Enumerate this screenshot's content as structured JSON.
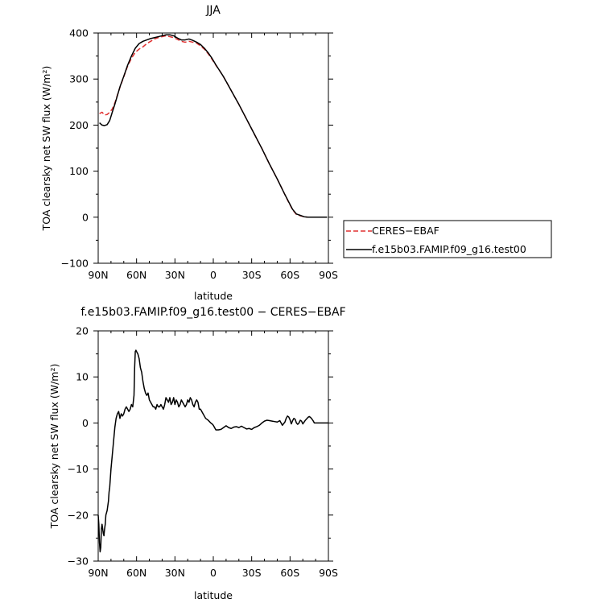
{
  "chart_data": [
    {
      "type": "line",
      "title": "JJA",
      "xlabel": "latitude",
      "ylabel": "TOA clearsky net SW flux (W/m²)",
      "xlim": [
        90,
        -90
      ],
      "ylim": [
        -100,
        400
      ],
      "x_ticks": [
        90,
        60,
        30,
        0,
        -30,
        -60,
        -90
      ],
      "x_tick_labels": [
        "90N",
        "60N",
        "30N",
        "0",
        "30S",
        "60S",
        "90S"
      ],
      "y_ticks": [
        -100,
        0,
        100,
        200,
        300,
        400
      ],
      "y_tick_labels": [
        "−100",
        "0",
        "100",
        "200",
        "300",
        "400"
      ],
      "legend": {
        "placement": "right",
        "entries": [
          {
            "label": "CERES−EBAF",
            "color": "#e03030",
            "dash": "dashed"
          },
          {
            "label": "f.e15b03.FAMIP.f09_g16.test00",
            "color": "#000000",
            "dash": "solid"
          }
        ]
      },
      "series": [
        {
          "name": "CERES−EBAF",
          "color": "#e03030",
          "dash": "dashed",
          "x": [
            89,
            87,
            85,
            83,
            81,
            79,
            77,
            75,
            73,
            70,
            67,
            64,
            61,
            58,
            55,
            52,
            49,
            46,
            43,
            40,
            37,
            34,
            31,
            28,
            25,
            22,
            19,
            16,
            13,
            10,
            7,
            4,
            1,
            -2,
            -5,
            -8,
            -11,
            -14,
            -17,
            -20,
            -23,
            -26,
            -29,
            -32,
            -35,
            -38,
            -41,
            -44,
            -47,
            -50,
            -53,
            -56,
            -59,
            -62,
            -65,
            -68,
            -71,
            -74,
            -77,
            -80,
            -83,
            -86,
            -89
          ],
          "y": [
            225,
            228,
            222,
            223,
            228,
            235,
            248,
            265,
            282,
            305,
            328,
            345,
            358,
            365,
            370,
            377,
            382,
            387,
            390,
            392,
            394,
            392,
            390,
            386,
            382,
            380,
            382,
            380,
            378,
            372,
            365,
            355,
            343,
            330,
            318,
            305,
            290,
            275,
            260,
            245,
            229,
            213,
            197,
            181,
            165,
            149,
            132,
            115,
            99,
            83,
            66,
            49,
            32,
            16,
            6,
            3,
            1,
            0,
            0,
            0,
            0,
            0,
            0
          ]
        },
        {
          "name": "f.e15b03.FAMIP.f09_g16.test00",
          "color": "#000000",
          "dash": "solid",
          "x": [
            89,
            87,
            85,
            83,
            81,
            79,
            77,
            75,
            73,
            70,
            67,
            64,
            61,
            58,
            55,
            52,
            49,
            46,
            43,
            40,
            37,
            34,
            31,
            28,
            25,
            22,
            19,
            16,
            13,
            10,
            7,
            4,
            1,
            -2,
            -5,
            -8,
            -11,
            -14,
            -17,
            -20,
            -23,
            -26,
            -29,
            -32,
            -35,
            -38,
            -41,
            -44,
            -47,
            -50,
            -53,
            -56,
            -59,
            -62,
            -65,
            -68,
            -71,
            -74,
            -77,
            -80,
            -83,
            -86,
            -89
          ],
          "y": [
            205,
            200,
            199,
            201,
            210,
            228,
            245,
            264,
            283,
            306,
            330,
            350,
            367,
            377,
            382,
            385,
            388,
            390,
            392,
            394,
            396,
            396,
            394,
            389,
            385,
            385,
            387,
            384,
            380,
            375,
            367,
            357,
            345,
            331,
            318,
            305,
            290,
            275,
            260,
            245,
            229,
            213,
            197,
            181,
            165,
            149,
            132,
            115,
            99,
            83,
            66,
            49,
            33,
            17,
            7,
            4,
            1,
            0,
            0,
            0,
            0,
            0,
            0
          ]
        }
      ]
    },
    {
      "type": "line",
      "title": "f.e15b03.FAMIP.f09_g16.test00 − CERES−EBAF",
      "xlabel": "latitude",
      "ylabel": "TOA clearsky net SW flux (W/m²)",
      "xlim": [
        90,
        -90
      ],
      "ylim": [
        -30,
        20
      ],
      "x_ticks": [
        90,
        60,
        30,
        0,
        -30,
        -60,
        -90
      ],
      "x_tick_labels": [
        "90N",
        "60N",
        "30N",
        "0",
        "30S",
        "60S",
        "90S"
      ],
      "y_ticks": [
        -30,
        -20,
        -10,
        0,
        10,
        20
      ],
      "y_tick_labels": [
        "−30",
        "−20",
        "−10",
        "0",
        "10",
        "20"
      ],
      "series": [
        {
          "name": "f.e15b03.FAMIP.f09_g16.test00 − CERES−EBAF",
          "color": "#000000",
          "dash": "solid",
          "x": [
            90,
            89.5,
            89,
            88.5,
            88,
            87.5,
            87,
            86.5,
            86,
            85.5,
            85,
            84.5,
            84,
            83.5,
            83,
            82,
            81.5,
            81,
            80.5,
            80,
            79,
            78,
            77,
            76,
            75,
            74,
            73,
            72,
            71,
            70,
            69,
            68,
            67,
            66,
            65,
            64,
            63,
            62,
            61.5,
            61,
            60.5,
            60,
            59,
            58,
            57,
            56,
            55,
            54,
            53,
            52,
            51,
            50,
            49,
            48,
            47,
            46,
            45,
            44,
            43,
            42,
            41,
            40,
            39,
            38,
            37,
            36,
            35,
            34,
            33,
            32,
            31,
            30,
            29,
            28,
            27,
            26,
            25,
            24,
            23,
            22,
            21,
            20,
            19,
            18,
            17,
            16,
            15,
            14,
            13,
            12,
            11,
            10,
            9,
            8,
            7,
            6,
            5,
            4,
            3,
            2,
            1,
            0,
            -2,
            -4,
            -6,
            -8,
            -10,
            -12,
            -14,
            -16,
            -18,
            -20,
            -22,
            -24,
            -26,
            -28,
            -30,
            -32,
            -34,
            -36,
            -38,
            -40,
            -42,
            -44,
            -46,
            -48,
            -50,
            -52,
            -54,
            -56,
            -57,
            -58,
            -59,
            -60,
            -61,
            -62,
            -63,
            -64,
            -65,
            -66,
            -67,
            -68,
            -69,
            -70,
            -71,
            -72,
            -73,
            -74,
            -75,
            -76,
            -77,
            -78,
            -79,
            -80,
            -82,
            -84,
            -86,
            -88,
            -90
          ],
          "y": [
            -20,
            -22,
            -26,
            -28,
            -27,
            -23,
            -22,
            -23,
            -24,
            -24.5,
            -23,
            -22,
            -20,
            -19.5,
            -19,
            -17,
            -15,
            -14,
            -12,
            -10,
            -7,
            -4,
            -1,
            1,
            2,
            2.5,
            1,
            2,
            1.5,
            2,
            3,
            3.5,
            3,
            2.5,
            3,
            4,
            3.5,
            6,
            12,
            15.5,
            15.8,
            15.5,
            15,
            14,
            12,
            11,
            9,
            7.5,
            6.5,
            6,
            6.5,
            5,
            4.5,
            4,
            3.5,
            3.5,
            3,
            4,
            3.5,
            3.5,
            4,
            3.5,
            3,
            4,
            5.5,
            5,
            4.5,
            5.5,
            4,
            4.5,
            5.5,
            4,
            5,
            4.5,
            3.5,
            4,
            5,
            4.5,
            4,
            3.5,
            4,
            5,
            4.5,
            5.5,
            5,
            4,
            3.5,
            4.5,
            5,
            4.5,
            3,
            3,
            2.5,
            2,
            1.5,
            1,
            0.8,
            0.6,
            0.3,
            0,
            -0.2,
            -0.5,
            -1.5,
            -1.5,
            -1.4,
            -1,
            -0.6,
            -1,
            -1.2,
            -0.9,
            -0.8,
            -1,
            -0.7,
            -1,
            -1.3,
            -1.2,
            -1.4,
            -1,
            -0.8,
            -0.5,
            0,
            0.4,
            0.6,
            0.5,
            0.4,
            0.3,
            0.2,
            0.5,
            -0.5,
            0.2,
            1,
            1.5,
            1.3,
            0.7,
            -0.2,
            0.5,
            1,
            0.8,
            0,
            -0.3,
            0,
            0.6,
            0.4,
            -0.2,
            0.2,
            0.6,
            0.9,
            1.2,
            1.4,
            1.2,
            0.9,
            0.5,
            0,
            0,
            0,
            0,
            0,
            0,
            0
          ]
        }
      ]
    }
  ]
}
